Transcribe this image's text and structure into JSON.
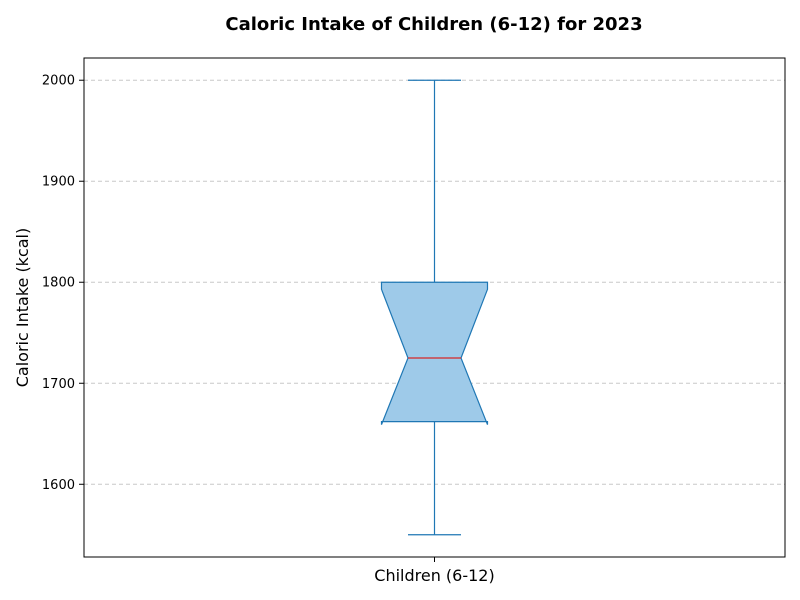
{
  "chart_data": {
    "type": "box",
    "title": "Caloric Intake of Children (6-12) for 2023",
    "xlabel": "",
    "ylabel": "Caloric Intake (kcal)",
    "categories": [
      "Children (6-12)"
    ],
    "boxes": [
      {
        "category": "Children (6-12)",
        "whisker_low": 1550,
        "q1": 1662,
        "median": 1725,
        "q3": 1800,
        "whisker_high": 2000,
        "notch_low": 1659,
        "notch_high": 1793
      }
    ],
    "yticks": [
      1600,
      1700,
      1800,
      1900,
      2000
    ],
    "ylim": [
      1528,
      2022
    ],
    "grid": "y-dashed",
    "colors": {
      "box_fill": "#9ecae9",
      "box_edge": "#1f77b4",
      "median": "#d62728",
      "grid": "#c8c8c8"
    }
  }
}
